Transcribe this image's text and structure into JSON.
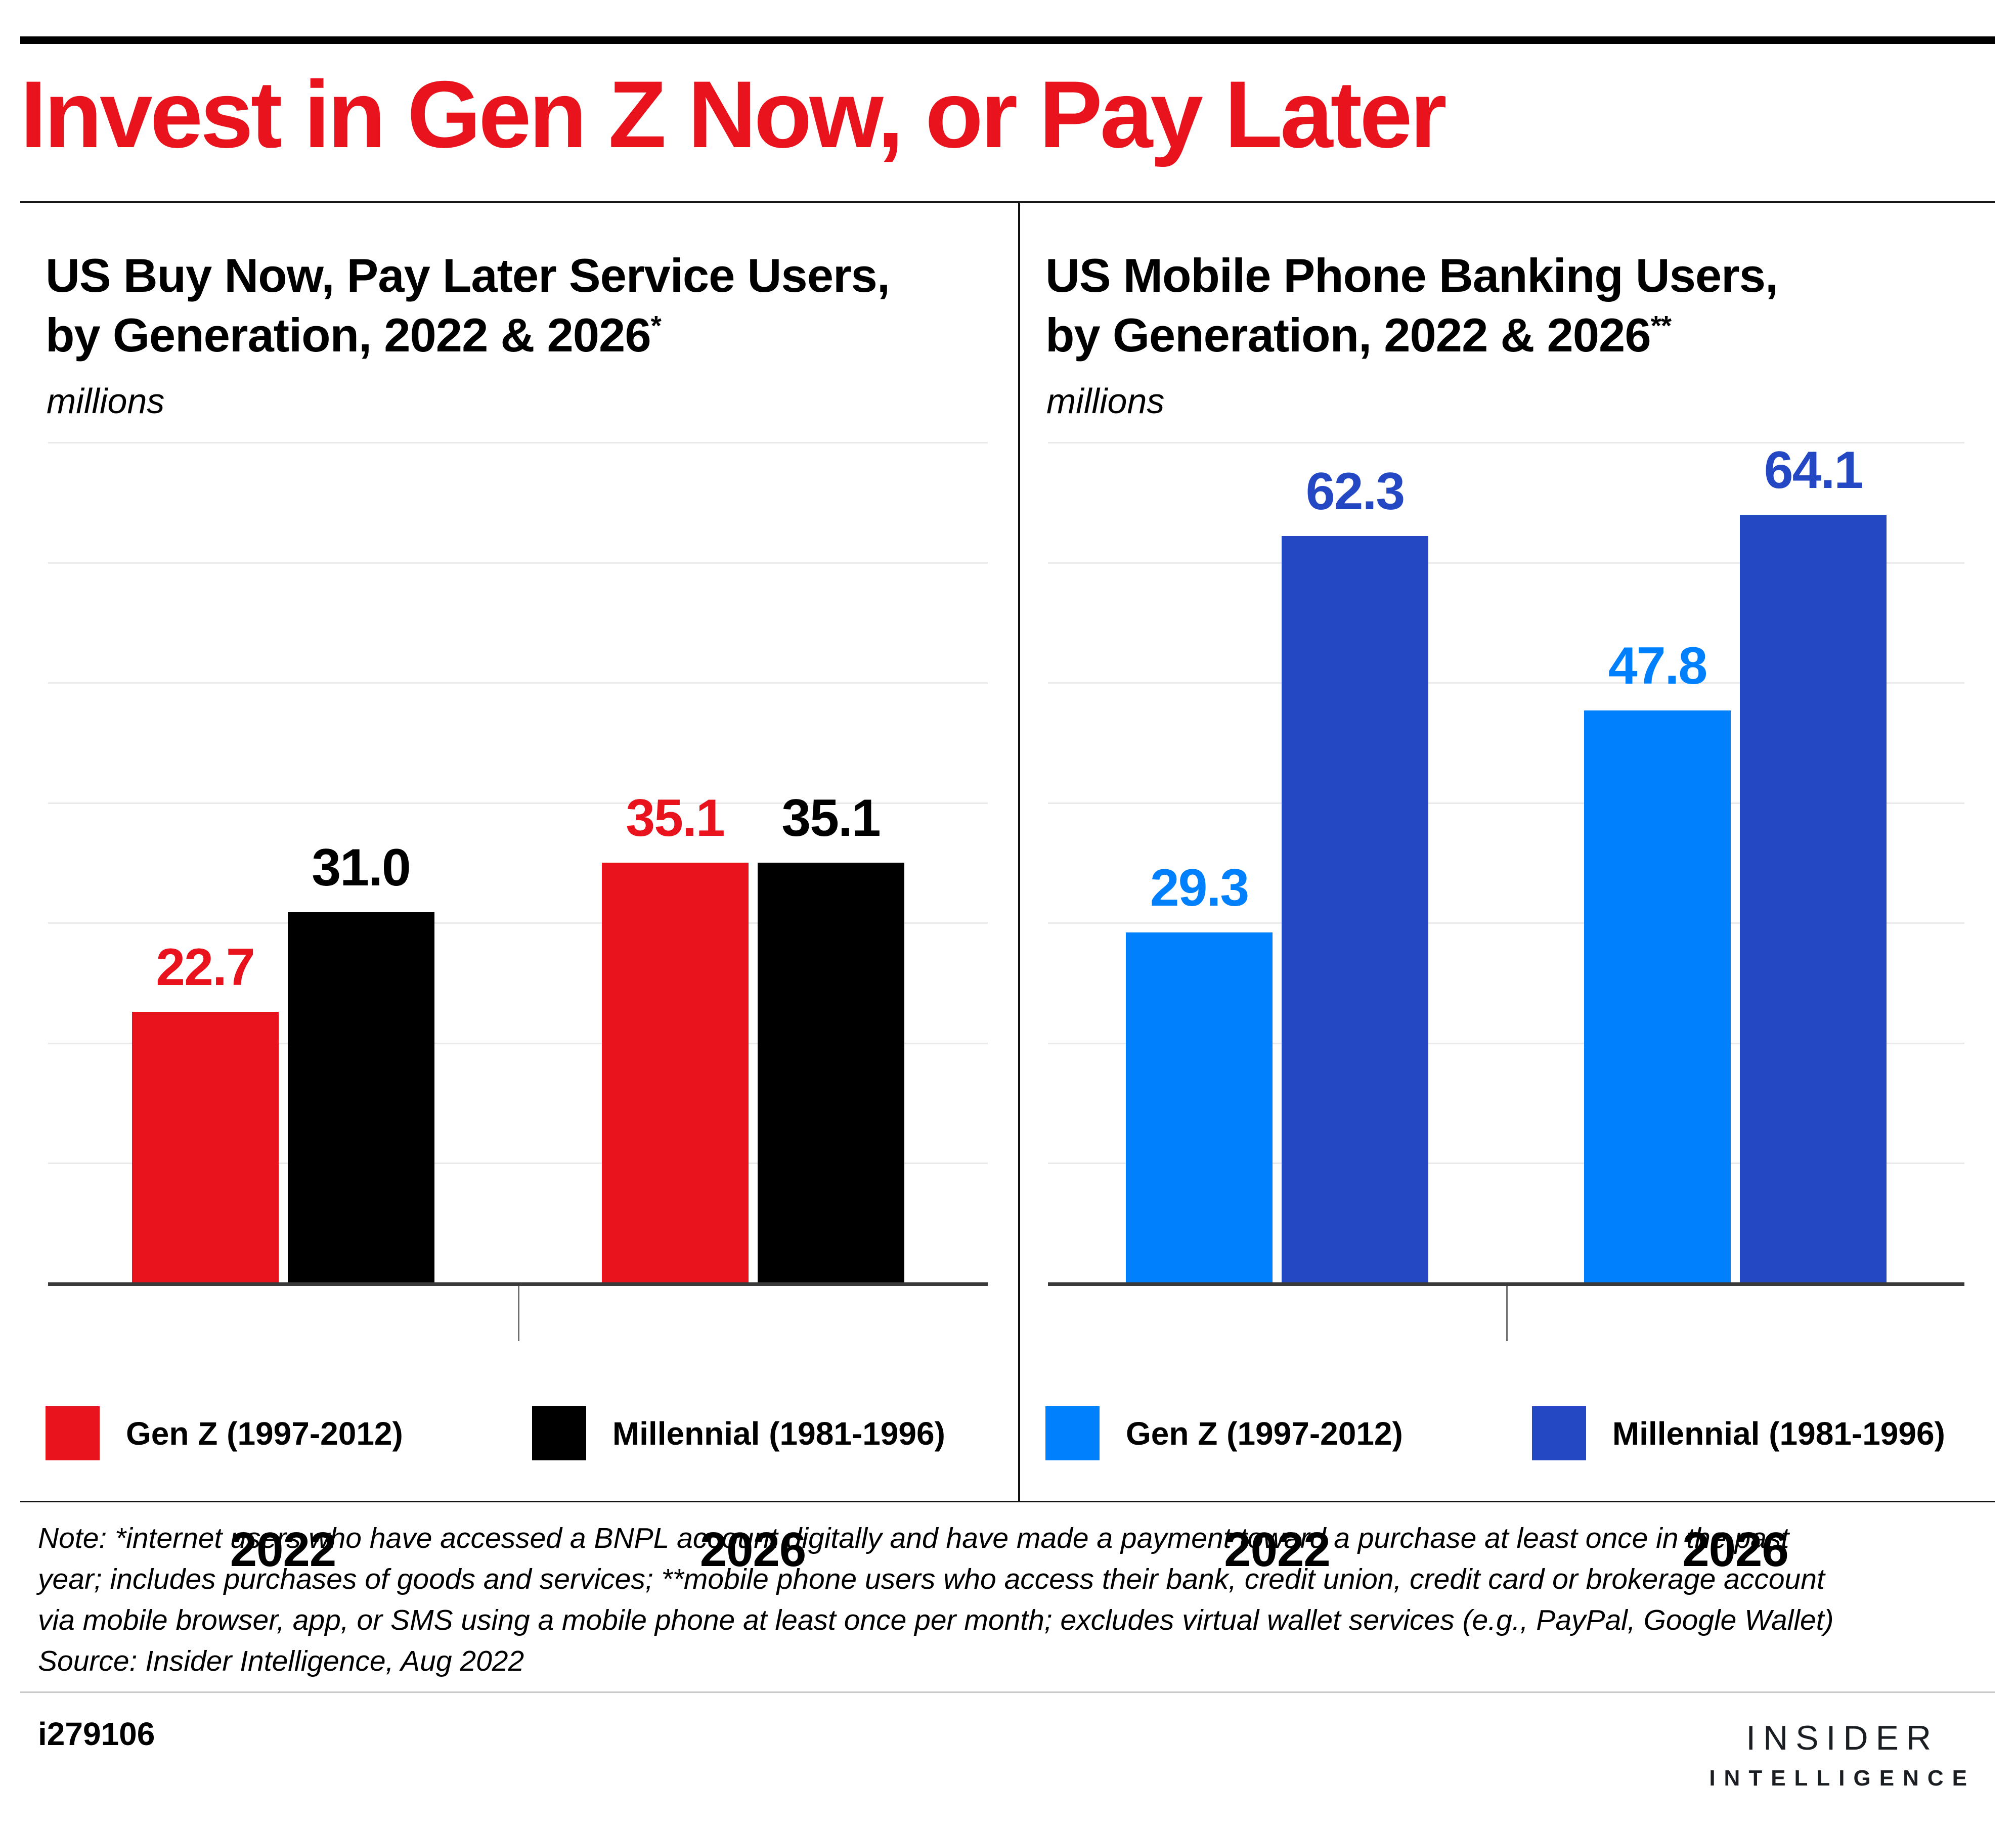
{
  "page": {
    "title": "Invest in Gen Z Now, or Pay Later",
    "footer_id": "i279106",
    "logo_line1": "INSIDER",
    "logo_line2": "INTELLIGENCE"
  },
  "note": {
    "line1": "Note: *internet users who have accessed a BNPL account digitally and have made a payment toward a purchase at least once in the past",
    "line2": "year; includes purchases of goods and services; **mobile phone users who access their bank, credit union, credit card or brokerage account",
    "line3": "via mobile browser, app, or SMS using a mobile phone at least once per month; excludes virtual wallet services (e.g., PayPal, Google Wallet)",
    "line4": "Source: Insider Intelligence, Aug 2022"
  },
  "colors": {
    "title_red": "#e8131c",
    "gen_z_left": "#e8131c",
    "millennial_left": "#000000",
    "gen_z_right": "#0080fd",
    "millennial_right": "#2447c4",
    "gridline": "#e9e9e9",
    "axis": "#3b3b3b",
    "top_rule": "#000000",
    "footer_rule": "#c9c9c9",
    "logo": "#1a1d21"
  },
  "chart_data": [
    {
      "type": "bar",
      "title_line1": "US Buy Now, Pay Later Service Users,",
      "title_line2": "by Generation, 2022 & 2026",
      "title_superscript": "*",
      "unit_label": "millions",
      "categories": [
        "2022",
        "2026"
      ],
      "series": [
        {
          "name": "Gen Z (1997-2012)",
          "color": "#e8131c",
          "values": [
            22.7,
            35.1
          ],
          "labels": [
            "22.7",
            "35.1"
          ]
        },
        {
          "name": "Millennial (1981-1996)",
          "color": "#000000",
          "values": [
            31.0,
            35.1
          ],
          "labels": [
            "31.0",
            "35.1"
          ]
        }
      ],
      "ylim": [
        0,
        70
      ],
      "gridline_interval": 10,
      "grid": true,
      "legend_position": "bottom"
    },
    {
      "type": "bar",
      "title_line1": "US Mobile Phone Banking Users,",
      "title_line2": "by Generation, 2022 & 2026",
      "title_superscript": "**",
      "unit_label": "millions",
      "categories": [
        "2022",
        "2026"
      ],
      "series": [
        {
          "name": "Gen Z (1997-2012)",
          "color": "#0080fd",
          "values": [
            29.3,
            47.8
          ],
          "labels": [
            "29.3",
            "47.8"
          ]
        },
        {
          "name": "Millennial (1981-1996)",
          "color": "#2447c4",
          "values": [
            62.3,
            64.1
          ],
          "labels": [
            "62.3",
            "64.1"
          ]
        }
      ],
      "ylim": [
        0,
        70
      ],
      "gridline_interval": 10,
      "grid": true,
      "legend_position": "bottom"
    }
  ]
}
